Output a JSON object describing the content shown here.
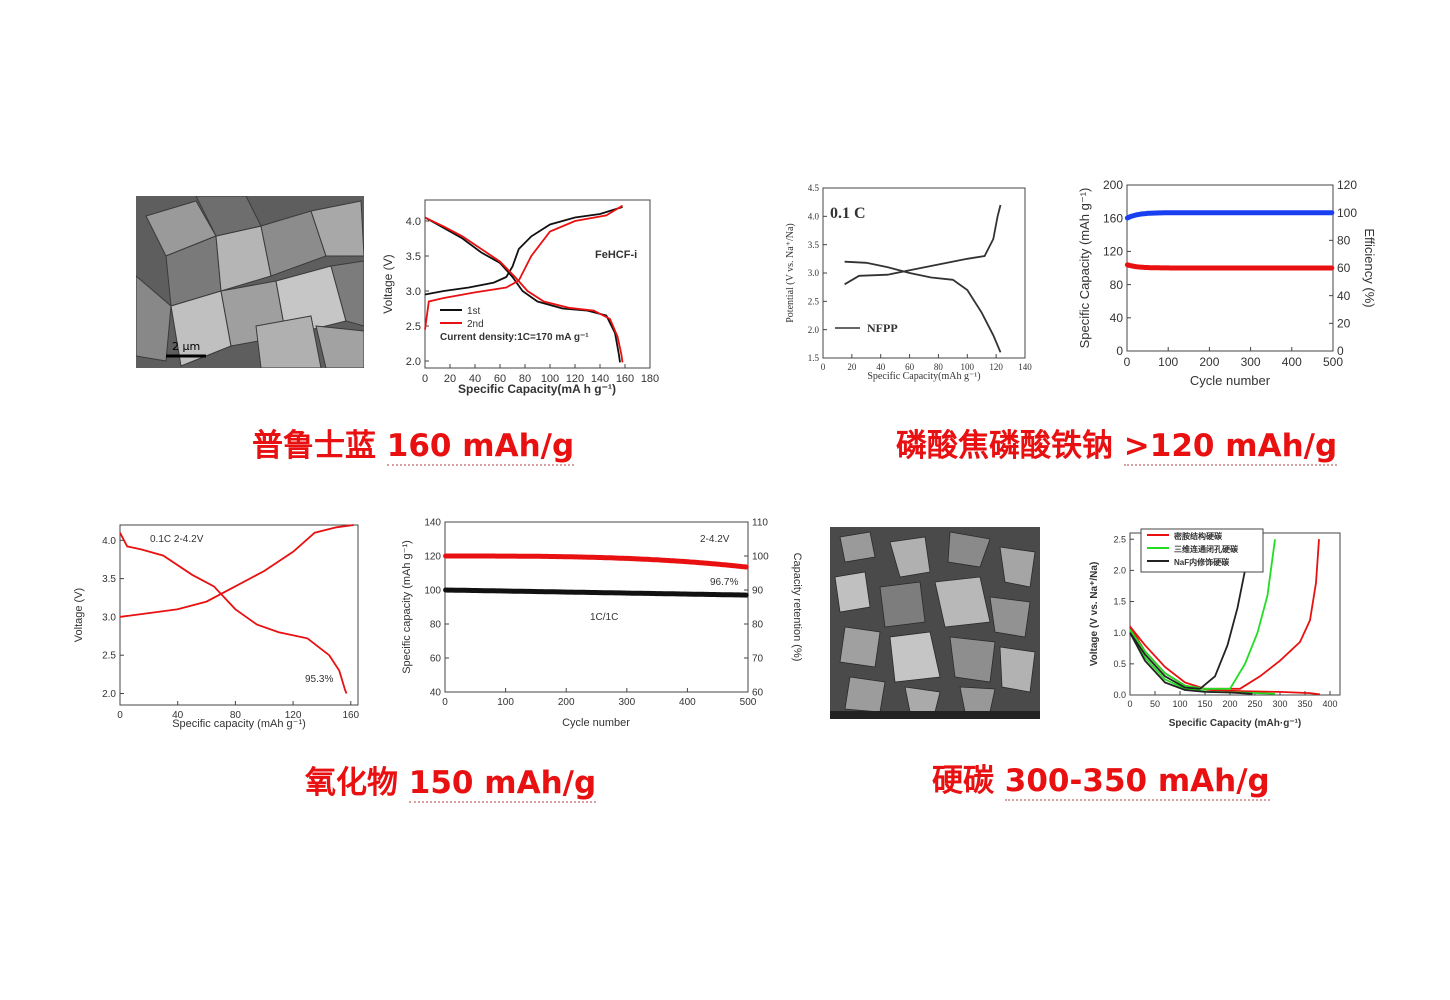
{
  "headings": {
    "pb": {
      "name": "普鲁士蓝",
      "value": "160 mAh/g"
    },
    "nfpp": {
      "name": "磷酸焦磷酸铁钠",
      "value": ">120 mAh/g"
    },
    "oxide": {
      "name": "氧化物",
      "value": "150 mAh/g"
    },
    "hc": {
      "name": "硬碳",
      "value": "300-350 mAh/g"
    }
  },
  "sem_scale": {
    "pb": "2 μm"
  },
  "chart_data": [
    {
      "id": "pb_voltage",
      "type": "line",
      "xlabel": "Specific Capacity(mA h g⁻¹)",
      "ylabel": "Voltage (V)",
      "xlim": [
        0,
        180
      ],
      "ylim": [
        1.9,
        4.3
      ],
      "xticks": [
        0,
        20,
        40,
        60,
        80,
        100,
        120,
        140,
        160,
        180
      ],
      "yticks": [
        2.0,
        2.5,
        3.0,
        3.5,
        4.0
      ],
      "annotation": "FeHCF-i",
      "note": "Current density:1C=170 mA g⁻¹",
      "legend": [
        "1st",
        "2nd"
      ],
      "series": [
        {
          "name": "1st",
          "color": "#111111",
          "segments": [
            [
              [
                0,
                2.95
              ],
              [
                15,
                3.0
              ],
              [
                35,
                3.05
              ],
              [
                55,
                3.12
              ],
              [
                65,
                3.2
              ],
              [
                70,
                3.35
              ],
              [
                75,
                3.6
              ],
              [
                85,
                3.78
              ],
              [
                100,
                3.95
              ],
              [
                120,
                4.05
              ],
              [
                140,
                4.1
              ],
              [
                158,
                4.2
              ]
            ],
            [
              [
                0,
                4.05
              ],
              [
                15,
                3.9
              ],
              [
                30,
                3.75
              ],
              [
                45,
                3.55
              ],
              [
                60,
                3.4
              ],
              [
                70,
                3.2
              ],
              [
                78,
                3.0
              ],
              [
                90,
                2.85
              ],
              [
                110,
                2.75
              ],
              [
                130,
                2.72
              ],
              [
                145,
                2.65
              ],
              [
                152,
                2.4
              ],
              [
                155,
                2.1
              ],
              [
                156,
                1.98
              ]
            ]
          ]
        },
        {
          "name": "2nd",
          "color": "#e81010",
          "segments": [
            [
              [
                0,
                2.45
              ],
              [
                3,
                2.85
              ],
              [
                15,
                2.9
              ],
              [
                40,
                2.98
              ],
              [
                65,
                3.05
              ],
              [
                75,
                3.15
              ],
              [
                85,
                3.5
              ],
              [
                100,
                3.85
              ],
              [
                120,
                4.0
              ],
              [
                145,
                4.08
              ],
              [
                158,
                4.22
              ]
            ],
            [
              [
                0,
                4.05
              ],
              [
                15,
                3.92
              ],
              [
                30,
                3.78
              ],
              [
                45,
                3.6
              ],
              [
                60,
                3.42
              ],
              [
                72,
                3.2
              ],
              [
                82,
                3.0
              ],
              [
                95,
                2.85
              ],
              [
                115,
                2.76
              ],
              [
                135,
                2.72
              ],
              [
                148,
                2.6
              ],
              [
                154,
                2.35
              ],
              [
                157,
                2.1
              ],
              [
                158,
                1.98
              ]
            ]
          ]
        }
      ]
    },
    {
      "id": "nfpp_potential",
      "type": "line",
      "xlabel": "Specific Capacity(mAh g⁻¹)",
      "ylabel": "Potential (V vs. Na⁺/Na)",
      "xlim": [
        0,
        140
      ],
      "ylim": [
        1.5,
        4.5
      ],
      "xticks": [
        0,
        20,
        40,
        60,
        80,
        100,
        120,
        140
      ],
      "yticks": [
        1.5,
        2.0,
        2.5,
        3.0,
        3.5,
        4.0,
        4.5
      ],
      "annotation": "0.1 C",
      "legend": [
        "NFPP"
      ],
      "series": [
        {
          "name": "NFPP",
          "color": "#333333",
          "segments": [
            [
              [
                15,
                2.8
              ],
              [
                25,
                2.95
              ],
              [
                45,
                2.97
              ],
              [
                60,
                3.05
              ],
              [
                80,
                3.15
              ],
              [
                100,
                3.25
              ],
              [
                112,
                3.3
              ],
              [
                118,
                3.6
              ],
              [
                121,
                4.0
              ],
              [
                123,
                4.2
              ]
            ],
            [
              [
                15,
                3.2
              ],
              [
                30,
                3.18
              ],
              [
                45,
                3.1
              ],
              [
                60,
                3.0
              ],
              [
                75,
                2.92
              ],
              [
                90,
                2.88
              ],
              [
                100,
                2.7
              ],
              [
                110,
                2.3
              ],
              [
                118,
                1.9
              ],
              [
                123,
                1.6
              ]
            ]
          ]
        }
      ]
    },
    {
      "id": "nfpp_cycle",
      "type": "scatter",
      "xlabel": "Cycle number",
      "ylabel": "Specific Capacity (mAh g⁻¹)",
      "y2label": "Efficiency (%)",
      "xlim": [
        0,
        500
      ],
      "ylim": [
        0,
        200
      ],
      "y2lim": [
        0,
        120
      ],
      "xticks": [
        0,
        100,
        200,
        300,
        400,
        500
      ],
      "yticks": [
        0,
        40,
        80,
        120,
        160,
        200
      ],
      "y2ticks": [
        0,
        20,
        40,
        60,
        80,
        100,
        120
      ],
      "series": [
        {
          "name": "",
          "axis": "y2",
          "color": "#1a3ff0",
          "start": 96,
          "value": 100
        },
        {
          "name": "",
          "axis": "y",
          "color": "#e81010",
          "start": 104,
          "value": 100
        }
      ]
    },
    {
      "id": "oxide_voltage",
      "type": "line",
      "xlabel": "Specific capacity (mAh g⁻¹)",
      "ylabel": "Voltage (V)",
      "xlim": [
        0,
        165
      ],
      "ylim": [
        1.85,
        4.2
      ],
      "xticks": [
        0,
        40,
        80,
        120,
        160
      ],
      "yticks": [
        2.0,
        2.5,
        3.0,
        3.5,
        4.0
      ],
      "annotation": "0.1C    2-4.2V",
      "note": "95.3%",
      "series": [
        {
          "name": "",
          "color": "#e81010",
          "segments": [
            [
              [
                0,
                3.0
              ],
              [
                20,
                3.05
              ],
              [
                40,
                3.1
              ],
              [
                60,
                3.2
              ],
              [
                80,
                3.4
              ],
              [
                100,
                3.6
              ],
              [
                120,
                3.85
              ],
              [
                135,
                4.1
              ],
              [
                150,
                4.17
              ],
              [
                162,
                4.2
              ]
            ],
            [
              [
                0,
                4.1
              ],
              [
                5,
                3.92
              ],
              [
                15,
                3.88
              ],
              [
                30,
                3.8
              ],
              [
                50,
                3.55
              ],
              [
                65,
                3.4
              ],
              [
                80,
                3.1
              ],
              [
                95,
                2.9
              ],
              [
                110,
                2.8
              ],
              [
                130,
                2.72
              ],
              [
                145,
                2.5
              ],
              [
                152,
                2.3
              ],
              [
                156,
                2.05
              ],
              [
                157,
                2.0
              ]
            ]
          ]
        }
      ]
    },
    {
      "id": "oxide_cycle",
      "type": "scatter",
      "xlabel": "Cycle number",
      "ylabel": "Specific capacity (mAh g⁻¹)",
      "y2label": "Capacity retention (%)",
      "xlim": [
        0,
        500
      ],
      "ylim": [
        40,
        140
      ],
      "y2lim": [
        60,
        110
      ],
      "xticks": [
        0,
        100,
        200,
        300,
        400,
        500
      ],
      "yticks": [
        40,
        60,
        80,
        100,
        120,
        140
      ],
      "y2ticks": [
        60,
        70,
        80,
        90,
        100,
        110
      ],
      "annotation": "2-4.2V",
      "note": "96.7%",
      "note2": "1C/1C",
      "series": [
        {
          "name": "",
          "axis": "y2",
          "color": "#e81010",
          "start": 100,
          "value": 96.7
        },
        {
          "name": "",
          "axis": "y",
          "color": "#111111",
          "start": 100,
          "value": 97
        }
      ]
    },
    {
      "id": "hc_voltage",
      "type": "line",
      "xlabel": "Specific Capacity (mAh·g⁻¹)",
      "ylabel": "Voltage (V vs. Na⁺/Na)",
      "xlim": [
        0,
        420
      ],
      "ylim": [
        0,
        2.6
      ],
      "xticks": [
        0,
        50,
        100,
        150,
        200,
        250,
        300,
        350,
        400
      ],
      "yticks": [
        0.0,
        0.5,
        1.0,
        1.5,
        2.0,
        2.5
      ],
      "legend": [
        "密胺结构硬碳",
        "三维连通闭孔硬碳",
        "NaF内修饰硬碳"
      ],
      "series": [
        {
          "name": "密胺结构硬碳",
          "color": "#e81010",
          "segments": [
            [
              [
                0,
                1.1
              ],
              [
                30,
                0.8
              ],
              [
                70,
                0.45
              ],
              [
                110,
                0.2
              ],
              [
                150,
                0.1
              ],
              [
                220,
                0.1
              ],
              [
                260,
                0.3
              ],
              [
                300,
                0.55
              ],
              [
                340,
                0.85
              ],
              [
                360,
                1.2
              ],
              [
                372,
                1.8
              ],
              [
                378,
                2.5
              ]
            ],
            [
              [
                0,
                1.1
              ],
              [
                30,
                0.7
              ],
              [
                70,
                0.35
              ],
              [
                110,
                0.15
              ],
              [
                160,
                0.08
              ],
              [
                230,
                0.06
              ],
              [
                300,
                0.05
              ],
              [
                360,
                0.03
              ],
              [
                380,
                0.01
              ]
            ]
          ]
        },
        {
          "name": "三维连通闭孔硬碳",
          "color": "#22dd22",
          "segments": [
            [
              [
                0,
                1.05
              ],
              [
                30,
                0.7
              ],
              [
                70,
                0.35
              ],
              [
                110,
                0.15
              ],
              [
                150,
                0.1
              ],
              [
                200,
                0.1
              ],
              [
                230,
                0.5
              ],
              [
                255,
                1.0
              ],
              [
                275,
                1.6
              ],
              [
                290,
                2.5
              ]
            ],
            [
              [
                0,
                1.05
              ],
              [
                30,
                0.6
              ],
              [
                70,
                0.25
              ],
              [
                110,
                0.1
              ],
              [
                160,
                0.05
              ],
              [
                220,
                0.04
              ],
              [
                290,
                0.02
              ]
            ]
          ]
        },
        {
          "name": "NaF内修饰硬碳",
          "color": "#222222",
          "segments": [
            [
              [
                0,
                1.0
              ],
              [
                30,
                0.65
              ],
              [
                70,
                0.3
              ],
              [
                110,
                0.12
              ],
              [
                140,
                0.1
              ],
              [
                170,
                0.3
              ],
              [
                195,
                0.8
              ],
              [
                215,
                1.4
              ],
              [
                230,
                2.0
              ],
              [
                242,
                2.5
              ]
            ],
            [
              [
                0,
                1.0
              ],
              [
                30,
                0.55
              ],
              [
                70,
                0.2
              ],
              [
                110,
                0.08
              ],
              [
                150,
                0.05
              ],
              [
                200,
                0.04
              ],
              [
                245,
                0.02
              ]
            ]
          ]
        }
      ]
    }
  ]
}
